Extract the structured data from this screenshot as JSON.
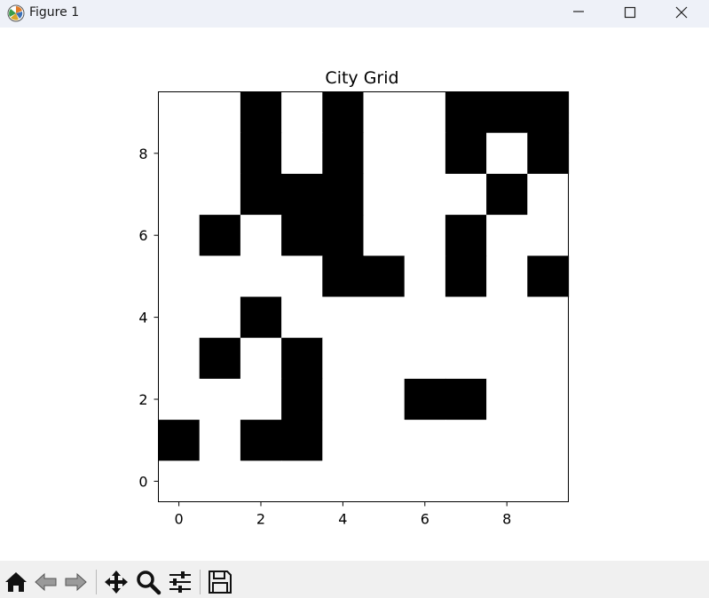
{
  "window": {
    "title": "Figure 1",
    "icon": "matplotlib-logo-icon",
    "controls": [
      "minimize-icon",
      "maximize-icon",
      "close-icon"
    ]
  },
  "toolbar": {
    "buttons": [
      "home-icon",
      "back-arrow-icon",
      "forward-arrow-icon",
      "pan-move-icon",
      "zoom-magnifier-icon",
      "configure-subplots-icon",
      "save-floppy-icon"
    ]
  },
  "colors": {
    "filled": "#000000",
    "empty": "#ffffff",
    "titlebar": "#eef1f8",
    "toolbar": "#f0f0f0"
  },
  "chart_data": {
    "type": "heatmap",
    "title": "City Grid",
    "xlabel": "",
    "ylabel": "",
    "x_ticks": [
      0,
      2,
      4,
      6,
      8
    ],
    "y_ticks": [
      0,
      2,
      4,
      6,
      8
    ],
    "xlim": [
      -0.5,
      9.5
    ],
    "ylim": [
      9.5,
      -0.5
    ],
    "colormap": "binary",
    "grid": false,
    "values": [
      [
        0,
        0,
        1,
        0,
        1,
        0,
        0,
        1,
        1,
        1
      ],
      [
        0,
        0,
        1,
        0,
        1,
        0,
        0,
        1,
        0,
        1
      ],
      [
        0,
        0,
        1,
        1,
        1,
        0,
        0,
        0,
        1,
        0
      ],
      [
        0,
        1,
        0,
        1,
        1,
        0,
        0,
        1,
        0,
        0
      ],
      [
        0,
        0,
        0,
        0,
        1,
        1,
        0,
        1,
        0,
        1
      ],
      [
        0,
        0,
        1,
        0,
        0,
        0,
        0,
        0,
        0,
        0
      ],
      [
        0,
        1,
        0,
        1,
        0,
        0,
        0,
        0,
        0,
        0
      ],
      [
        0,
        0,
        0,
        1,
        0,
        0,
        1,
        1,
        0,
        0
      ],
      [
        1,
        0,
        1,
        1,
        0,
        0,
        0,
        0,
        0,
        0
      ],
      [
        0,
        0,
        0,
        0,
        0,
        0,
        0,
        0,
        0,
        0
      ]
    ]
  }
}
